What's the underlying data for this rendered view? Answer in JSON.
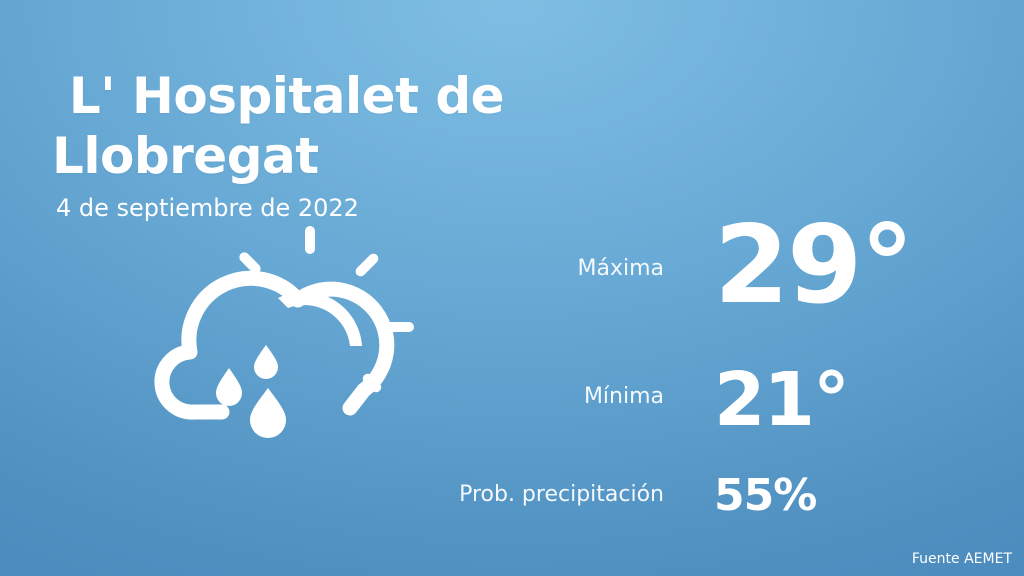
{
  "location": {
    "city": " L' Hospitalet de Llobregat",
    "date": "4 de septiembre de 2022"
  },
  "forecast": {
    "icon": "cloud-sun-rain-icon",
    "max_label": "Máxima",
    "max_value": "29°",
    "min_label": "Mínima",
    "min_value": "21°",
    "precip_label": "Prob. precipitación",
    "precip_value": "55%"
  },
  "source": "Fuente AEMET",
  "colors": {
    "background_top": "#7fbfe4",
    "background_bottom": "#4987ba",
    "text": "#ffffff"
  }
}
